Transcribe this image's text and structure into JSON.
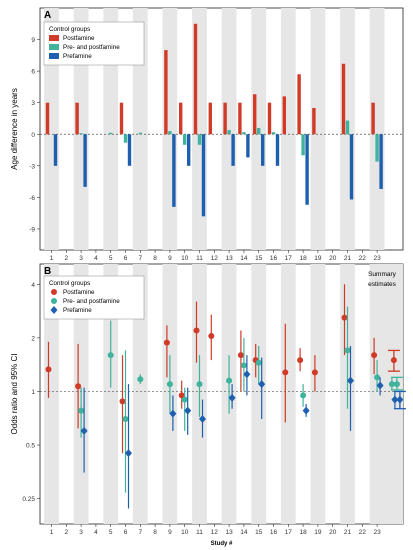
{
  "colors": {
    "postfamine": "#d03a27",
    "pre_post": "#3fb39b",
    "prefamine": "#1f5fb0",
    "band": "#e6e6e6",
    "ref_line": "#555555"
  },
  "chart_data": [
    {
      "type": "bar",
      "panel_label": "A",
      "ylabel": "Age difference in years",
      "ylim": [
        -11,
        12
      ],
      "yticks": [
        9,
        6,
        3,
        0,
        -3,
        -6,
        -9
      ],
      "ytick_labels": [
        "9",
        "6",
        "3",
        "0",
        "-3",
        "-6",
        "-9"
      ],
      "legend": {
        "title": "Control groups",
        "position": "top-left",
        "items": [
          "Postfamine",
          "Pre- and postfamine",
          "Prefamine"
        ]
      },
      "categories": [
        "1",
        "2",
        "3",
        "4",
        "5",
        "6",
        "7",
        "8",
        "9",
        "10",
        "11",
        "12",
        "13",
        "14",
        "15",
        "16",
        "17",
        "18",
        "19",
        "20",
        "21",
        "22",
        "23"
      ],
      "series": [
        {
          "name": "Postfamine",
          "color_key": "postfamine",
          "values": [
            3,
            0,
            3,
            0,
            0,
            3,
            0,
            0,
            8,
            3,
            10.5,
            3,
            3,
            3,
            3.8,
            3,
            3.6,
            5.7,
            2.5,
            0,
            6.7,
            0,
            3
          ]
        },
        {
          "name": "Pre- and postfamine",
          "color_key": "pre_post",
          "values": [
            0,
            0,
            0.1,
            0,
            0.15,
            -0.8,
            0.15,
            0,
            0.3,
            -1,
            -1,
            0,
            0.4,
            0.2,
            0.6,
            0.2,
            0,
            -2,
            0,
            0,
            1.3,
            0,
            -2.6
          ]
        },
        {
          "name": "Prefamine",
          "color_key": "prefamine",
          "values": [
            -3,
            0,
            -5,
            0,
            0,
            -3,
            0,
            0,
            -6.9,
            -3,
            -7.8,
            0,
            -3,
            -2.2,
            -3,
            -3,
            0,
            -6.7,
            0,
            0,
            -6.2,
            0,
            -5.2
          ]
        }
      ]
    },
    {
      "type": "scatter",
      "panel_label": "B",
      "ylabel": "Odds ratio and 95% CI",
      "xlabel": "Study #",
      "yscale": "log",
      "ylim": [
        0.18,
        5.2
      ],
      "yticks": [
        4,
        2,
        1,
        0.5,
        0.25
      ],
      "ytick_labels": [
        "4",
        "2",
        "1",
        "0.5",
        "0.25"
      ],
      "legend": {
        "title": "Control groups",
        "position": "top-left",
        "items": [
          "Postfamine",
          "Pre- and postfamine",
          "Prefamine"
        ]
      },
      "summary_label": [
        "Summary",
        "estimates"
      ],
      "categories": [
        "1",
        "2",
        "3",
        "4",
        "5",
        "6",
        "7",
        "8",
        "9",
        "10",
        "11",
        "12",
        "13",
        "14",
        "15",
        "16",
        "17",
        "18",
        "19",
        "20",
        "21",
        "22",
        "23"
      ],
      "series": [
        {
          "name": "Postfamine",
          "color_key": "postfamine",
          "points": [
            {
              "x": 1,
              "y": 1.33,
              "lo": 0.92,
              "hi": 1.9
            },
            {
              "x": 3,
              "y": 1.07,
              "lo": 0.62,
              "hi": 1.85
            },
            {
              "x": 6,
              "y": 0.88,
              "lo": 0.45,
              "hi": 1.6
            },
            {
              "x": 9,
              "y": 1.88,
              "lo": 1.2,
              "hi": 2.35
            },
            {
              "x": 10,
              "y": 0.95,
              "lo": 0.8,
              "hi": 1.15
            },
            {
              "x": 11,
              "y": 2.2,
              "lo": 1.45,
              "hi": 3.2
            },
            {
              "x": 12,
              "y": 2.05,
              "lo": 1.5,
              "hi": 2.7
            },
            {
              "x": 14,
              "y": 1.6,
              "lo": 1.0,
              "hi": 2.2
            },
            {
              "x": 15,
              "y": 1.5,
              "lo": 1.2,
              "hi": 1.85
            },
            {
              "x": 17,
              "y": 1.28,
              "lo": 0.67,
              "hi": 2.4
            },
            {
              "x": 18,
              "y": 1.5,
              "lo": 1.3,
              "hi": 1.75
            },
            {
              "x": 19,
              "y": 1.28,
              "lo": 1.0,
              "hi": 1.6
            },
            {
              "x": 21,
              "y": 2.6,
              "lo": 1.6,
              "hi": 4.0
            },
            {
              "x": 23,
              "y": 1.6,
              "lo": 1.25,
              "hi": 2.0
            }
          ]
        },
        {
          "name": "Pre- and postfamine",
          "color_key": "pre_post",
          "points": [
            {
              "x": 3,
              "y": 0.78,
              "lo": 0.55,
              "hi": 1.05
            },
            {
              "x": 5,
              "y": 1.6,
              "lo": 1.05,
              "hi": 2.5
            },
            {
              "x": 6,
              "y": 0.7,
              "lo": 0.27,
              "hi": 1.7
            },
            {
              "x": 7,
              "y": 1.17,
              "lo": 1.1,
              "hi": 1.25
            },
            {
              "x": 9,
              "y": 1.1,
              "lo": 0.75,
              "hi": 1.6
            },
            {
              "x": 10,
              "y": 0.9,
              "lo": 0.6,
              "hi": 1.05
            },
            {
              "x": 11,
              "y": 1.1,
              "lo": 0.72,
              "hi": 1.6
            },
            {
              "x": 13,
              "y": 1.15,
              "lo": 0.75,
              "hi": 1.6
            },
            {
              "x": 14,
              "y": 1.4,
              "lo": 1.0,
              "hi": 2.0
            },
            {
              "x": 15,
              "y": 1.45,
              "lo": 1.1,
              "hi": 1.8
            },
            {
              "x": 18,
              "y": 0.95,
              "lo": 0.82,
              "hi": 1.1
            },
            {
              "x": 21,
              "y": 1.7,
              "lo": 0.8,
              "hi": 3.0
            },
            {
              "x": 23,
              "y": 1.2,
              "lo": 1.0,
              "hi": 1.5
            },
            {
              "x": 24,
              "y": 1.1,
              "lo": 1.02,
              "hi": 1.2
            }
          ]
        },
        {
          "name": "Prefamine",
          "color_key": "prefamine",
          "points": [
            {
              "x": 3,
              "y": 0.6,
              "lo": 0.35,
              "hi": 1.05
            },
            {
              "x": 6,
              "y": 0.45,
              "lo": 0.22,
              "hi": 1.1
            },
            {
              "x": 9,
              "y": 0.75,
              "lo": 0.6,
              "hi": 0.95
            },
            {
              "x": 10,
              "y": 0.78,
              "lo": 0.57,
              "hi": 1.05
            },
            {
              "x": 11,
              "y": 0.7,
              "lo": 0.55,
              "hi": 0.9
            },
            {
              "x": 13,
              "y": 0.92,
              "lo": 0.8,
              "hi": 1.1
            },
            {
              "x": 14,
              "y": 1.25,
              "lo": 0.95,
              "hi": 1.6
            },
            {
              "x": 15,
              "y": 1.1,
              "lo": 0.7,
              "hi": 1.55
            },
            {
              "x": 18,
              "y": 0.78,
              "lo": 0.72,
              "hi": 0.85
            },
            {
              "x": 21,
              "y": 1.15,
              "lo": 0.6,
              "hi": 1.8
            },
            {
              "x": 23,
              "y": 1.08,
              "lo": 0.95,
              "hi": 1.2
            },
            {
              "x": 24,
              "y": 0.9,
              "lo": 0.8,
              "hi": 1.0
            }
          ]
        }
      ],
      "summary": [
        {
          "name": "Postfamine",
          "color_key": "postfamine",
          "y": 1.5,
          "lo": 1.3,
          "hi": 1.7
        },
        {
          "name": "Pre- and postfamine",
          "color_key": "pre_post",
          "y": 1.1,
          "lo": 1.02,
          "hi": 1.2
        },
        {
          "name": "Prefamine",
          "color_key": "prefamine",
          "y": 0.9,
          "lo": 0.8,
          "hi": 1.0
        }
      ]
    }
  ]
}
